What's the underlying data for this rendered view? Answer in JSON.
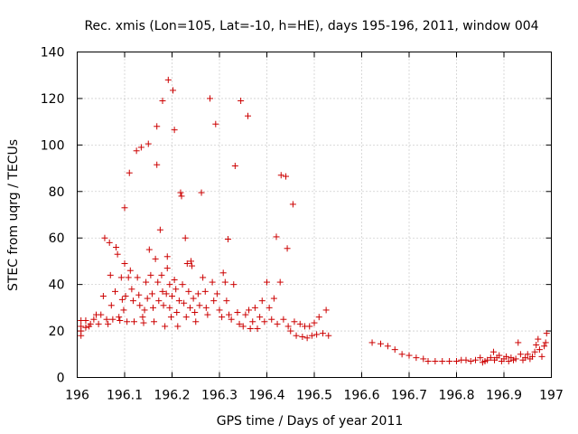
{
  "chart_data": {
    "type": "scatter",
    "title": "Rec. xmis (Lon=105, Lat=-10, h=HE), days 195-196, 2011, window 004",
    "xlabel": "GPS time / Days of year 2011",
    "ylabel": "STEC from uqrg / TECUs",
    "xlim": [
      196,
      197
    ],
    "ylim": [
      0,
      140
    ],
    "xticks": [
      196,
      196.1,
      196.2,
      196.3,
      196.4,
      196.5,
      196.6,
      196.7,
      196.8,
      196.9,
      197
    ],
    "xtick_labels": [
      "196",
      "196.1",
      "196.2",
      "196.3",
      "196.4",
      "196.5",
      "196.6",
      "196.7",
      "196.8",
      "196.9",
      "197"
    ],
    "yticks": [
      0,
      20,
      40,
      60,
      80,
      100,
      120,
      140
    ],
    "ytick_labels": [
      "0",
      "20",
      "40",
      "60",
      "80",
      "100",
      "120",
      "140"
    ],
    "grid": true,
    "marker": "+",
    "marker_color": "#cc0000",
    "series": [
      {
        "name": "STEC",
        "points": [
          [
            196.008,
            18
          ],
          [
            196.008,
            20
          ],
          [
            196.008,
            22
          ],
          [
            196.008,
            24.5
          ],
          [
            196.018,
            21.5
          ],
          [
            196.018,
            24.5
          ],
          [
            196.025,
            22
          ],
          [
            196.028,
            23
          ],
          [
            196.035,
            25
          ],
          [
            196.04,
            27
          ],
          [
            196.045,
            23
          ],
          [
            196.05,
            27
          ],
          [
            196.055,
            35
          ],
          [
            196.058,
            60
          ],
          [
            196.062,
            25
          ],
          [
            196.065,
            23
          ],
          [
            196.068,
            58
          ],
          [
            196.07,
            44
          ],
          [
            196.072,
            31
          ],
          [
            196.075,
            25
          ],
          [
            196.08,
            37
          ],
          [
            196.082,
            56
          ],
          [
            196.085,
            53
          ],
          [
            196.088,
            26
          ],
          [
            196.09,
            24.5
          ],
          [
            196.093,
            43
          ],
          [
            196.095,
            33.5
          ],
          [
            196.098,
            29
          ],
          [
            196.1,
            73
          ],
          [
            196.1,
            49
          ],
          [
            196.102,
            35
          ],
          [
            196.105,
            24
          ],
          [
            196.108,
            43
          ],
          [
            196.11,
            88
          ],
          [
            196.112,
            46
          ],
          [
            196.115,
            38
          ],
          [
            196.118,
            33
          ],
          [
            196.12,
            24
          ],
          [
            196.125,
            97.5
          ],
          [
            196.127,
            43
          ],
          [
            196.13,
            35.5
          ],
          [
            196.132,
            31
          ],
          [
            196.135,
            99
          ],
          [
            196.138,
            26
          ],
          [
            196.14,
            23.5
          ],
          [
            196.142,
            29
          ],
          [
            196.145,
            41
          ],
          [
            196.148,
            34
          ],
          [
            196.15,
            100.5
          ],
          [
            196.152,
            55
          ],
          [
            196.155,
            44
          ],
          [
            196.158,
            36
          ],
          [
            196.16,
            30
          ],
          [
            196.162,
            24
          ],
          [
            196.165,
            51
          ],
          [
            196.168,
            108
          ],
          [
            196.168,
            91.5
          ],
          [
            196.17,
            41
          ],
          [
            196.172,
            33
          ],
          [
            196.175,
            63.5
          ],
          [
            196.178,
            44
          ],
          [
            196.18,
            119
          ],
          [
            196.18,
            37
          ],
          [
            196.182,
            31
          ],
          [
            196.185,
            22
          ],
          [
            196.188,
            36
          ],
          [
            196.19,
            52
          ],
          [
            196.19,
            47
          ],
          [
            196.192,
            128
          ],
          [
            196.195,
            40
          ],
          [
            196.195,
            30
          ],
          [
            196.198,
            26
          ],
          [
            196.2,
            35
          ],
          [
            196.202,
            123.5
          ],
          [
            196.205,
            106.5
          ],
          [
            196.205,
            42
          ],
          [
            196.208,
            38
          ],
          [
            196.21,
            28
          ],
          [
            196.212,
            22
          ],
          [
            196.215,
            33
          ],
          [
            196.218,
            79.5
          ],
          [
            196.22,
            78
          ],
          [
            196.222,
            40
          ],
          [
            196.225,
            32
          ],
          [
            196.228,
            60
          ],
          [
            196.23,
            26
          ],
          [
            196.232,
            49
          ],
          [
            196.235,
            37
          ],
          [
            196.238,
            30
          ],
          [
            196.24,
            50
          ],
          [
            196.242,
            48
          ],
          [
            196.245,
            34
          ],
          [
            196.248,
            28
          ],
          [
            196.25,
            24
          ],
          [
            196.255,
            36
          ],
          [
            196.258,
            31
          ],
          [
            196.262,
            79.5
          ],
          [
            196.265,
            43
          ],
          [
            196.27,
            37
          ],
          [
            196.272,
            30
          ],
          [
            196.275,
            27
          ],
          [
            196.28,
            120
          ],
          [
            196.285,
            41
          ],
          [
            196.288,
            33
          ],
          [
            196.292,
            109
          ],
          [
            196.295,
            36
          ],
          [
            196.3,
            29
          ],
          [
            196.305,
            26
          ],
          [
            196.308,
            45
          ],
          [
            196.312,
            41
          ],
          [
            196.315,
            33
          ],
          [
            196.318,
            59.5
          ],
          [
            196.32,
            27
          ],
          [
            196.325,
            25
          ],
          [
            196.33,
            40
          ],
          [
            196.333,
            91
          ],
          [
            196.338,
            28
          ],
          [
            196.342,
            23
          ],
          [
            196.345,
            119
          ],
          [
            196.35,
            22
          ],
          [
            196.355,
            27
          ],
          [
            196.36,
            112.5
          ],
          [
            196.362,
            29
          ],
          [
            196.365,
            21
          ],
          [
            196.37,
            24
          ],
          [
            196.375,
            30
          ],
          [
            196.38,
            21
          ],
          [
            196.385,
            26
          ],
          [
            196.39,
            33
          ],
          [
            196.395,
            24
          ],
          [
            196.4,
            41
          ],
          [
            196.405,
            30
          ],
          [
            196.41,
            25
          ],
          [
            196.415,
            34
          ],
          [
            196.42,
            60.5
          ],
          [
            196.422,
            23
          ],
          [
            196.428,
            41
          ],
          [
            196.43,
            87
          ],
          [
            196.435,
            25
          ],
          [
            196.44,
            86.5
          ],
          [
            196.443,
            55.5
          ],
          [
            196.445,
            22
          ],
          [
            196.45,
            20
          ],
          [
            196.455,
            74.5
          ],
          [
            196.458,
            24
          ],
          [
            196.462,
            18
          ],
          [
            196.47,
            23
          ],
          [
            196.475,
            17.5
          ],
          [
            196.48,
            22
          ],
          [
            196.485,
            17
          ],
          [
            196.49,
            22
          ],
          [
            196.495,
            18
          ],
          [
            196.5,
            23.5
          ],
          [
            196.505,
            18.5
          ],
          [
            196.51,
            26
          ],
          [
            196.518,
            19
          ],
          [
            196.525,
            29
          ],
          [
            196.53,
            18
          ],
          [
            196.622,
            15
          ],
          [
            196.64,
            14.5
          ],
          [
            196.655,
            13.5
          ],
          [
            196.67,
            12
          ],
          [
            196.685,
            10
          ],
          [
            196.7,
            9.5
          ],
          [
            196.715,
            8.5
          ],
          [
            196.73,
            8
          ],
          [
            196.74,
            7
          ],
          [
            196.755,
            7
          ],
          [
            196.77,
            7
          ],
          [
            196.785,
            7
          ],
          [
            196.8,
            7
          ],
          [
            196.81,
            7.5
          ],
          [
            196.82,
            7.5
          ],
          [
            196.83,
            7
          ],
          [
            196.84,
            7.5
          ],
          [
            196.85,
            8.5
          ],
          [
            196.855,
            6.5
          ],
          [
            196.86,
            7
          ],
          [
            196.865,
            7.5
          ],
          [
            196.872,
            8.5
          ],
          [
            196.878,
            11
          ],
          [
            196.88,
            7.5
          ],
          [
            196.885,
            8.5
          ],
          [
            196.89,
            9.5
          ],
          [
            196.895,
            7
          ],
          [
            196.9,
            8
          ],
          [
            196.905,
            9
          ],
          [
            196.91,
            7
          ],
          [
            196.915,
            8.5
          ],
          [
            196.92,
            7.5
          ],
          [
            196.925,
            8
          ],
          [
            196.93,
            15
          ],
          [
            196.935,
            10
          ],
          [
            196.94,
            7.5
          ],
          [
            196.945,
            8.5
          ],
          [
            196.95,
            10
          ],
          [
            196.955,
            8
          ],
          [
            196.96,
            9
          ],
          [
            196.965,
            11
          ],
          [
            196.968,
            14
          ],
          [
            196.972,
            16.5
          ],
          [
            196.975,
            12
          ],
          [
            196.98,
            9
          ],
          [
            196.985,
            13.5
          ],
          [
            196.988,
            15
          ],
          [
            196.99,
            19
          ]
        ]
      }
    ]
  }
}
